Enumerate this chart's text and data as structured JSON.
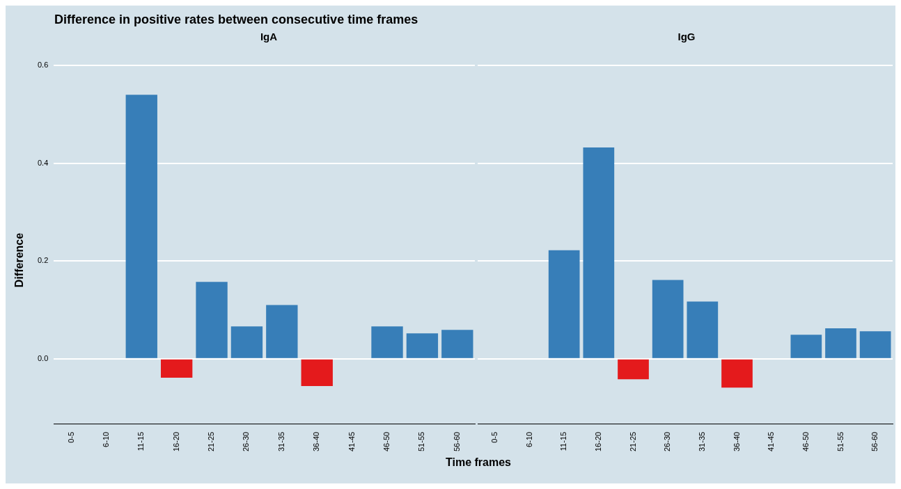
{
  "chart_data": [
    {
      "type": "bar",
      "title": "Difference in positive rates between consecutive time frames",
      "subtitle": "IgA",
      "xlabel": "Time frames",
      "ylabel": "Difference",
      "categories": [
        "0-5",
        "6-10",
        "11-15",
        "16-20",
        "21-25",
        "26-30",
        "31-35",
        "36-40",
        "41-45",
        "46-50",
        "51-55",
        "56-60"
      ],
      "values": [
        null,
        0,
        0.54,
        -0.039,
        0.157,
        0.066,
        0.11,
        -0.056,
        0,
        0.066,
        0.052,
        0.059
      ],
      "colors": [
        "#377eb8",
        "#377eb8",
        "#377eb8",
        "#e41a1c",
        "#377eb8",
        "#377eb8",
        "#377eb8",
        "#e41a1c",
        "#377eb8",
        "#377eb8",
        "#377eb8",
        "#377eb8"
      ],
      "ylim": [
        -0.134,
        0.6
      ],
      "yticks": [
        {
          "value": 0,
          "label": "0.0"
        },
        {
          "value": 0.2,
          "label": "0.2"
        },
        {
          "value": 0.4,
          "label": "0.4"
        },
        {
          "value": 0.6,
          "label": "0.6"
        }
      ],
      "grid": "y"
    },
    {
      "type": "bar",
      "subtitle": "IgG",
      "categories": [
        "0-5",
        "6-10",
        "11-15",
        "16-20",
        "21-25",
        "26-30",
        "31-35",
        "36-40",
        "41-45",
        "46-50",
        "51-55",
        "56-60"
      ],
      "values": [
        null,
        0,
        0.222,
        0.432,
        -0.042,
        0.161,
        0.117,
        -0.059,
        0,
        0.049,
        0.062,
        0.056
      ],
      "colors": [
        "#377eb8",
        "#377eb8",
        "#377eb8",
        "#377eb8",
        "#e41a1c",
        "#377eb8",
        "#377eb8",
        "#e41a1c",
        "#377eb8",
        "#377eb8",
        "#377eb8",
        "#377eb8"
      ],
      "ylim": [
        -0.134,
        0.6
      ],
      "yticks": [
        0,
        0.2,
        0.4,
        0.6
      ],
      "grid": "y",
      "tick_labels": "x"
    }
  ]
}
